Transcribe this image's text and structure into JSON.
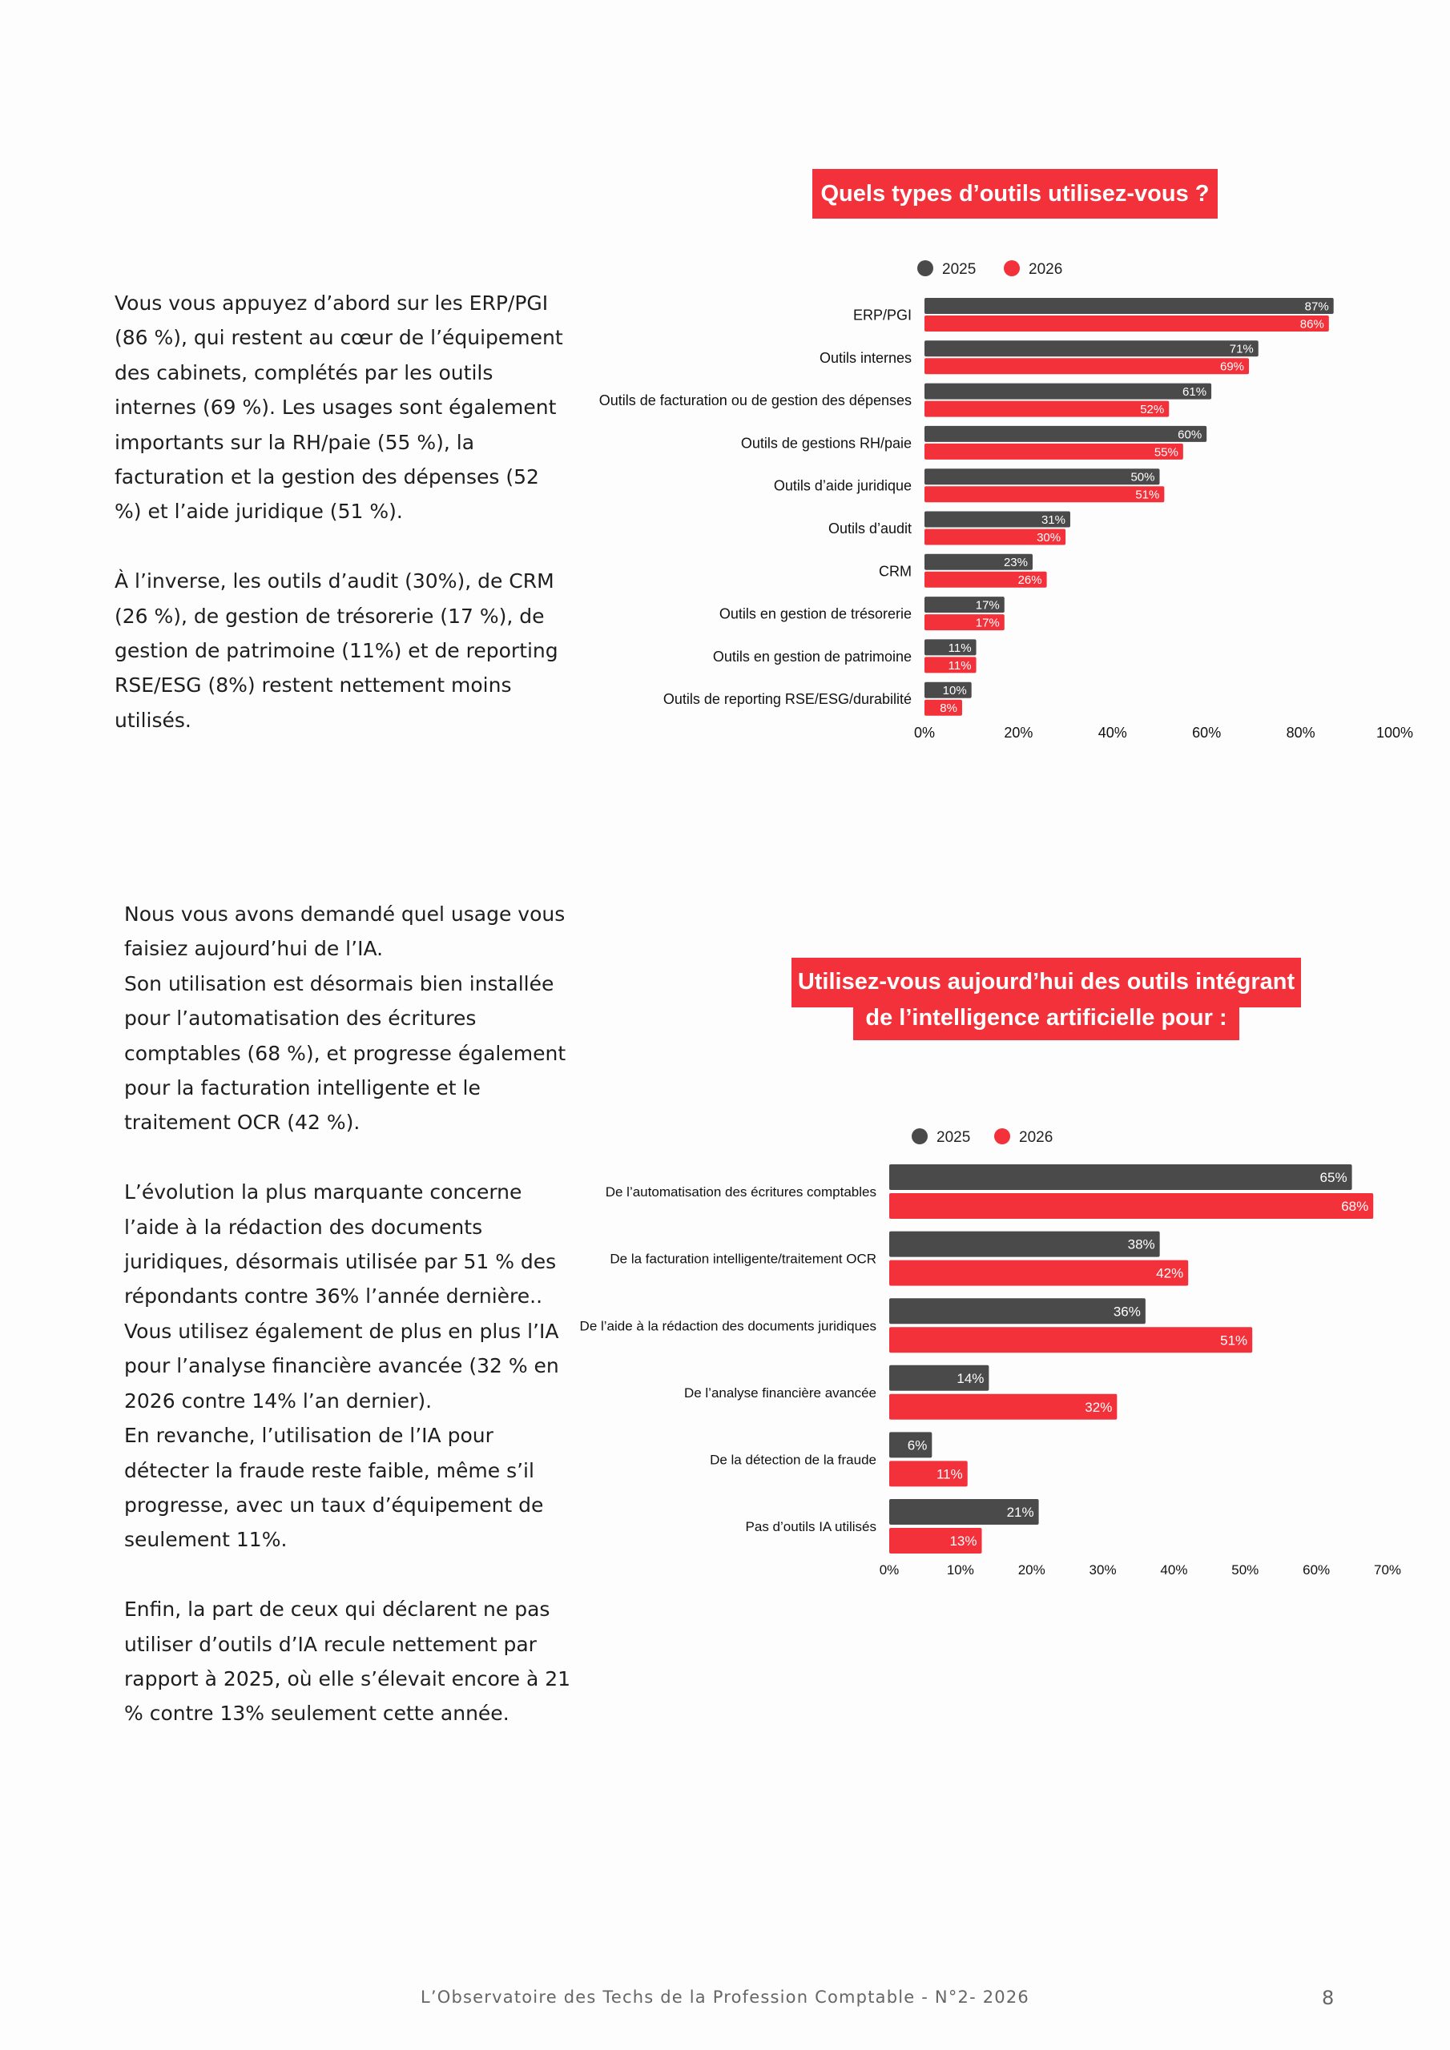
{
  "paragraphs": {
    "p1": "Vous vous appuyez d’abord sur les ERP/PGI (86 %), qui restent au cœur de l’équipement des cabinets, complétés par les outils internes (69 %). Les usages sont également importants sur la RH/paie (55 %), la facturation et la gestion des dépenses (52 %) et l’aide juridique (51 %).\n\nÀ l’inverse, les outils d’audit (30%), de CRM (26 %), de gestion de trésorerie (17 %), de gestion de patrimoine (11%) et de reporting RSE/ESG (8%) restent nettement moins utilisés.",
    "p2": "Nous vous avons demandé quel usage vous faisiez aujourd’hui de l’IA.\nSon utilisation est désormais bien installée pour l’automatisation des écritures comptables (68 %), et progresse également pour la facturation intelligente et le traitement OCR (42 %).\n\nL’évolution la plus marquante concerne l’aide à la rédaction des documents juridiques, désormais utilisée par 51 % des répondants contre 36% l’année dernière..\nVous utilisez également de plus en plus l’IA pour l’analyse financière avancée (32 % en 2026 contre 14% l’an dernier).\nEn revanche, l’utilisation de l’IA pour détecter la fraude reste faible, même s’il progresse, avec un taux d’équipement de seulement 11%.\n\nEnfin, la part de ceux qui déclarent ne pas utiliser d’outils d’IA recule nettement par rapport à 2025, où elle s’élevait encore à 21 % contre 13% seulement cette année."
  },
  "colors": {
    "accent": "#f2313a",
    "dark": "#4a4a4a"
  },
  "chart_data": [
    {
      "type": "bar",
      "orientation": "horizontal",
      "title": "Quels types d’outils utilisez-vous ?",
      "categories": [
        "ERP/PGI",
        "Outils internes",
        "Outils de facturation ou de gestion des dépenses",
        "Outils de gestions RH/paie",
        "Outils d’aide juridique",
        "Outils d’audit",
        "CRM",
        "Outils en gestion de trésorerie",
        "Outils en gestion de patrimoine",
        "Outils de reporting RSE/ESG/durabilité"
      ],
      "series": [
        {
          "name": "2025",
          "color": "#4a4a4a",
          "values": [
            87,
            71,
            61,
            60,
            50,
            31,
            23,
            17,
            11,
            10
          ]
        },
        {
          "name": "2026",
          "color": "#f2313a",
          "values": [
            86,
            69,
            52,
            55,
            51,
            30,
            26,
            17,
            11,
            8
          ]
        }
      ],
      "xlim": [
        0,
        100
      ],
      "xticks": [
        0,
        20,
        40,
        60,
        80,
        100
      ],
      "tick_suffix": "%",
      "legend": "top-left",
      "grid": false
    },
    {
      "type": "bar",
      "orientation": "horizontal",
      "title": [
        "Utilisez-vous aujourd’hui des outils intégrant",
        "de l’intelligence artificielle pour :"
      ],
      "categories": [
        "De l’automatisation des écritures comptables",
        "De la facturation intelligente/traitement OCR",
        "De l’aide à la rédaction des documents juridiques",
        "De l’analyse financière avancée",
        "De la détection de la fraude",
        "Pas d’outils IA utilisés"
      ],
      "series": [
        {
          "name": "2025",
          "color": "#4a4a4a",
          "values": [
            65,
            38,
            36,
            14,
            6,
            21
          ]
        },
        {
          "name": "2026",
          "color": "#f2313a",
          "values": [
            68,
            42,
            51,
            32,
            11,
            13
          ]
        }
      ],
      "xlim": [
        0,
        70
      ],
      "xticks": [
        0,
        10,
        20,
        30,
        40,
        50,
        60,
        70
      ],
      "tick_suffix": "%",
      "legend": "top-left",
      "grid": false
    }
  ],
  "footer": {
    "text": "L’Observatoire des Techs de la Profession Comptable - N°2- 2026",
    "page": "8"
  }
}
